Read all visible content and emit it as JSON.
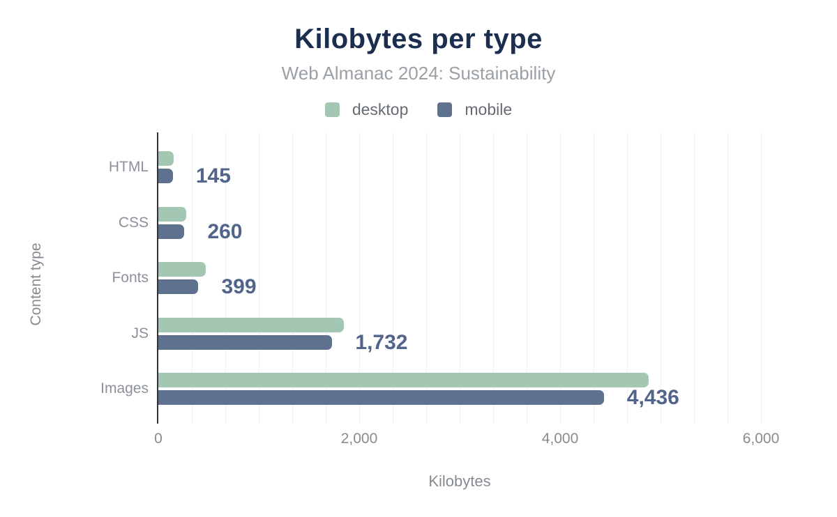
{
  "header": {
    "title": "Kilobytes per type",
    "subtitle": "Web Almanac 2024: Sustainability"
  },
  "legend": {
    "items": [
      {
        "label": "desktop",
        "color": "#a4c7b4"
      },
      {
        "label": "mobile",
        "color": "#5e7290"
      }
    ]
  },
  "chart_data": {
    "type": "bar",
    "orientation": "horizontal",
    "title": "Kilobytes per type",
    "subtitle": "Web Almanac 2024: Sustainability",
    "categories": [
      "HTML",
      "CSS",
      "Fonts",
      "JS",
      "Images"
    ],
    "series": [
      {
        "name": "desktop",
        "color": "#a4c7b4",
        "values": [
          150,
          275,
          470,
          1850,
          4880
        ]
      },
      {
        "name": "mobile",
        "color": "#5e7290",
        "values": [
          145,
          260,
          399,
          1732,
          4436
        ]
      }
    ],
    "value_labels": [
      "145",
      "260",
      "399",
      "1,732",
      "4,436"
    ],
    "value_labels_series": "mobile",
    "xlabel": "Kilobytes",
    "ylabel": "Content type",
    "xlim": [
      0,
      6000
    ],
    "x_ticks": [
      {
        "value": 0,
        "label": "0"
      },
      {
        "value": 2000,
        "label": "2,000"
      },
      {
        "value": 4000,
        "label": "4,000"
      },
      {
        "value": 6000,
        "label": "6,000"
      }
    ],
    "minor_gridlines_per_major": 6,
    "grid": "vertical-minor",
    "legend_position": "top"
  },
  "colors": {
    "background": "#ffffff",
    "title": "#1c2e4f",
    "subtitle": "#9aa0a6",
    "legend_text": "#666b72",
    "category_label": "#8b909a",
    "tick_label": "#868b92",
    "axis_title": "#868b92",
    "value_label": "#52648a",
    "gridline": "#f0f0f2",
    "axis_line": "#2e3338",
    "desktop": "#a4c7b4",
    "mobile": "#5e7290"
  }
}
